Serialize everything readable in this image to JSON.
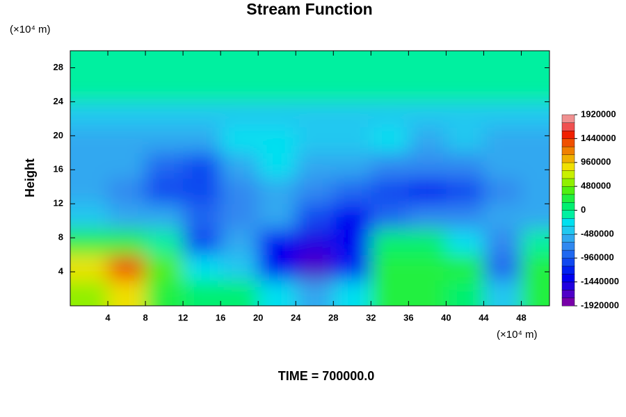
{
  "chart_data": {
    "type": "contour",
    "title": "Stream Function",
    "x_unit": "(×10⁴ m)",
    "y_unit": "(×10⁴ m)",
    "ylabel": "Height",
    "footer": "TIME = 700000.0",
    "x": [
      2,
      6,
      10,
      14,
      18,
      22,
      26,
      30,
      34,
      38,
      42,
      46,
      50
    ],
    "y": [
      1.5,
      4.5,
      7.5,
      10.5,
      13.5,
      16.5,
      19.5,
      22.5,
      25.5,
      28.5
    ],
    "z": [
      [
        600000,
        900000,
        300000,
        50000,
        150000,
        -300000,
        -500000,
        -300000,
        200000,
        250000,
        100000,
        -400000,
        300000
      ],
      [
        800000,
        1300000,
        400000,
        -200000,
        -400000,
        -1300000,
        -1700000,
        -1200000,
        250000,
        300000,
        200000,
        -900000,
        200000
      ],
      [
        200000,
        300000,
        -100000,
        -1000000,
        -600000,
        -1300000,
        -1500000,
        -1300000,
        0,
        100000,
        -200000,
        -800000,
        -100000
      ],
      [
        -400000,
        -600000,
        -600000,
        -900000,
        -700000,
        -600000,
        -1100000,
        -1300000,
        -900000,
        -700000,
        -700000,
        -500000,
        -500000
      ],
      [
        -600000,
        -700000,
        -1100000,
        -1100000,
        -700000,
        -600000,
        -700000,
        -900000,
        -1100000,
        -1200000,
        -1100000,
        -800000,
        -600000
      ],
      [
        -500000,
        -600000,
        -900000,
        -1100000,
        -500000,
        -300000,
        -500000,
        -600000,
        -700000,
        -800000,
        -700000,
        -600000,
        -500000
      ],
      [
        -500000,
        -500000,
        -500000,
        -500000,
        -300000,
        -200000,
        -400000,
        -400000,
        -300000,
        -500000,
        -400000,
        -500000,
        -500000
      ],
      [
        -400000,
        -400000,
        -400000,
        -400000,
        -400000,
        -400000,
        -400000,
        -400000,
        -400000,
        -400000,
        -400000,
        -400000,
        -400000
      ],
      [
        -100000,
        -100000,
        -100000,
        -100000,
        -100000,
        -100000,
        -100000,
        -100000,
        -100000,
        -100000,
        -100000,
        -100000,
        -100000
      ],
      [
        -100000,
        -100000,
        -100000,
        -100000,
        -100000,
        -100000,
        -100000,
        -100000,
        -100000,
        -100000,
        -100000,
        -100000,
        -100000
      ]
    ],
    "xlim": [
      0,
      51
    ],
    "ylim": [
      0,
      30
    ],
    "xticks": [
      4,
      8,
      12,
      16,
      20,
      24,
      28,
      32,
      36,
      40,
      44,
      48
    ],
    "yticks": [
      4,
      8,
      12,
      16,
      20,
      24,
      28
    ],
    "zlim": [
      -1920000,
      1920000
    ],
    "zticks": [
      -1920000,
      -1440000,
      -960000,
      -480000,
      0,
      480000,
      960000,
      1440000,
      1920000
    ],
    "colors": [
      "#7800a8",
      "#5000c8",
      "#2000e0",
      "#0000f0",
      "#0020f0",
      "#1048f0",
      "#2068f0",
      "#3088f0",
      "#30a8f0",
      "#20c8f0",
      "#00e0f0",
      "#00f0a0",
      "#00f070",
      "#20f040",
      "#50f010",
      "#90f000",
      "#c8f000",
      "#f0e000",
      "#f0b000",
      "#f08000",
      "#f05000",
      "#f02000",
      "#f05050",
      "#f09090"
    ]
  }
}
